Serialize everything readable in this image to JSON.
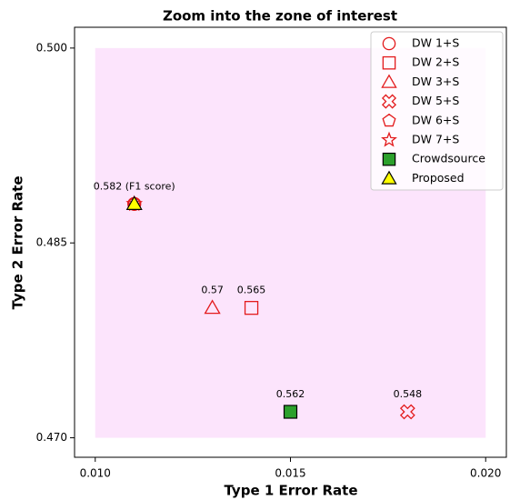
{
  "chart_data": {
    "type": "scatter",
    "title": "Zoom into the zone of interest",
    "xlabel": "Type 1 Error Rate",
    "ylabel": "Type 2 Error Rate",
    "xlim": [
      0.00947,
      0.02053
    ],
    "ylim": [
      0.4685,
      0.5016
    ],
    "xticks": [
      {
        "value": 0.01,
        "label": "0.010"
      },
      0.015,
      {
        "value": 0.02,
        "label": "0.020"
      }
    ],
    "yticks": [
      {
        "value": 0.47,
        "label": "0.470"
      },
      0.485,
      {
        "value": 0.5,
        "label": "0.500"
      }
    ],
    "highlight_region": {
      "x": [
        0.01,
        0.02
      ],
      "y": [
        0.47,
        0.5
      ],
      "color": "#fce4fc"
    },
    "legend": "upper right",
    "series": [
      {
        "name": "DW 1+S",
        "marker": "circle",
        "color": "#e31a1c",
        "filled": false,
        "x": [
          0.011
        ],
        "values": [
          0.488
        ]
      },
      {
        "name": "DW 2+S",
        "marker": "square",
        "color": "#e31a1c",
        "filled": false,
        "x": [
          0.014
        ],
        "values": [
          0.48
        ],
        "annotation": "0.565"
      },
      {
        "name": "DW 3+S",
        "marker": "triangle",
        "color": "#e31a1c",
        "filled": false,
        "x": [
          0.013
        ],
        "values": [
          0.48
        ],
        "annotation": "0.57"
      },
      {
        "name": "DW 5+S",
        "marker": "x",
        "color": "#e31a1c",
        "filled": false,
        "x": [
          0.018
        ],
        "values": [
          0.472
        ],
        "annotation": "0.548"
      },
      {
        "name": "DW 6+S",
        "marker": "pentagon",
        "color": "#e31a1c",
        "filled": false,
        "x": [
          0.011
        ],
        "values": [
          0.488
        ]
      },
      {
        "name": "DW 7+S",
        "marker": "star",
        "color": "#e31a1c",
        "filled": false,
        "x": [
          0.011
        ],
        "values": [
          0.488
        ]
      },
      {
        "name": "Crowdsource",
        "marker": "square",
        "color": "#2ca02c",
        "filled": true,
        "x": [
          0.015
        ],
        "values": [
          0.472
        ],
        "annotation": "0.562"
      },
      {
        "name": "Proposed",
        "marker": "triangle",
        "color": "#ffff00",
        "filled": true,
        "x": [
          0.011
        ],
        "values": [
          0.488
        ],
        "annotation": "0.582 (F1 score)"
      }
    ]
  }
}
